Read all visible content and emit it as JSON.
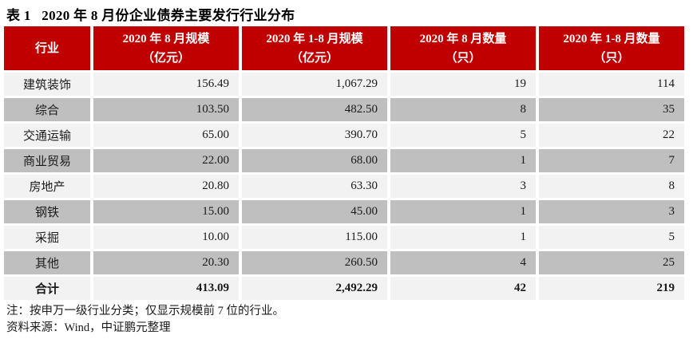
{
  "title": "表 1   2020 年 8 月份企业债券主要发行行业分布",
  "colors": {
    "header_bg": "#C00000",
    "header_text": "#FFFFFF",
    "row_light": "#F2F2F2",
    "row_dark": "#BFBFBF",
    "text": "#1A1A1A"
  },
  "table": {
    "headers": [
      {
        "line1": "行业",
        "line2": ""
      },
      {
        "line1": "2020 年 8 月规模",
        "line2": "（亿元）"
      },
      {
        "line1": "2020 年 1-8 月规模",
        "line2": "（亿元）"
      },
      {
        "line1": "2020 年 8 月数量",
        "line2": "（只）"
      },
      {
        "line1": "2020 年 1-8 月数量",
        "line2": "（只）"
      }
    ],
    "rows": [
      {
        "industry": "建筑装饰",
        "aug_scale": "156.49",
        "ytd_scale": "1,067.29",
        "aug_count": "19",
        "ytd_count": "114"
      },
      {
        "industry": "综合",
        "aug_scale": "103.50",
        "ytd_scale": "482.50",
        "aug_count": "8",
        "ytd_count": "35"
      },
      {
        "industry": "交通运输",
        "aug_scale": "65.00",
        "ytd_scale": "390.70",
        "aug_count": "5",
        "ytd_count": "22"
      },
      {
        "industry": "商业贸易",
        "aug_scale": "22.00",
        "ytd_scale": "68.00",
        "aug_count": "1",
        "ytd_count": "7"
      },
      {
        "industry": "房地产",
        "aug_scale": "20.80",
        "ytd_scale": "63.30",
        "aug_count": "3",
        "ytd_count": "8"
      },
      {
        "industry": "钢铁",
        "aug_scale": "15.00",
        "ytd_scale": "45.00",
        "aug_count": "1",
        "ytd_count": "3"
      },
      {
        "industry": "采掘",
        "aug_scale": "10.00",
        "ytd_scale": "115.00",
        "aug_count": "1",
        "ytd_count": "5"
      },
      {
        "industry": "其他",
        "aug_scale": "20.30",
        "ytd_scale": "260.50",
        "aug_count": "4",
        "ytd_count": "25"
      }
    ],
    "total": {
      "industry": "合计",
      "aug_scale": "413.09",
      "ytd_scale": "2,492.29",
      "aug_count": "42",
      "ytd_count": "219"
    }
  },
  "notes": [
    "注：按申万一级行业分类；仅显示规模前 7 位的行业。",
    "资料来源：Wind，中证鹏元整理"
  ]
}
